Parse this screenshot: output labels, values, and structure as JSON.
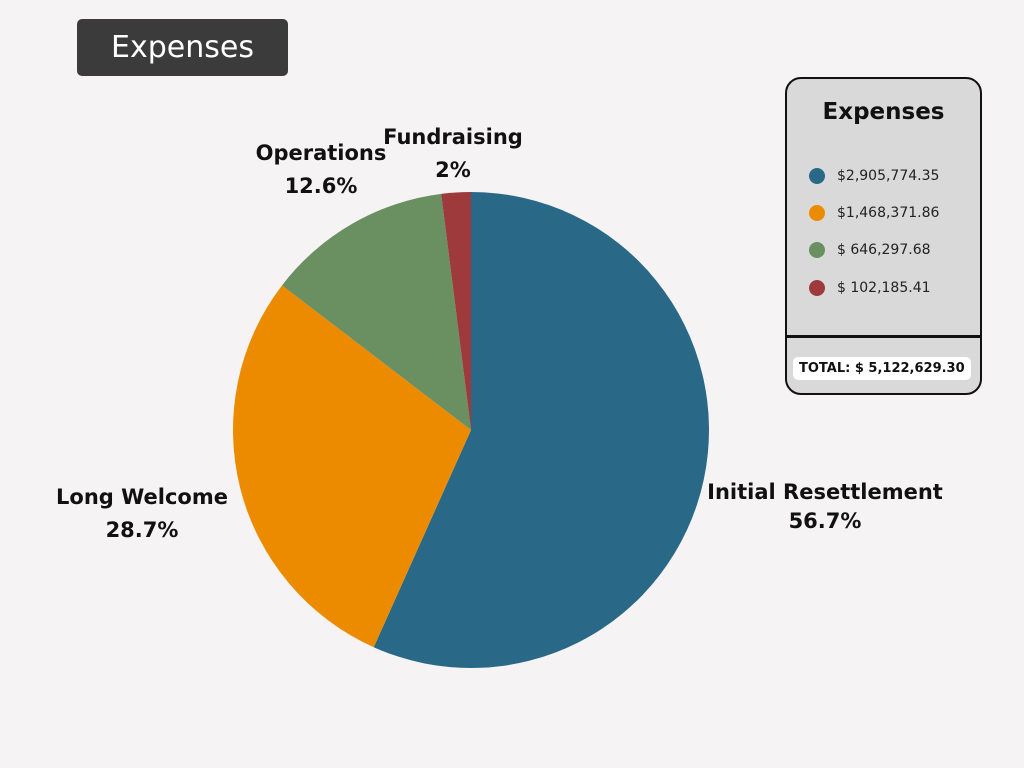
{
  "page": {
    "title": "Expenses"
  },
  "legend": {
    "title": "Expenses",
    "items": [
      {
        "value": "$2,905,774.35",
        "color": "#2a6887"
      },
      {
        "value": "$1,468,371.86",
        "color": "#ec8b00"
      },
      {
        "value": "$ 646,297.68",
        "color": "#6a9062"
      },
      {
        "value": "$ 102,185.41",
        "color": "#9e3a3b"
      }
    ],
    "total": "TOTAL: $ 5,122,629.30"
  },
  "chart_data": {
    "type": "pie",
    "title": "Expenses",
    "start": "12 o'clock",
    "direction": "clockwise",
    "slices": [
      {
        "label": "Initial Resettlement",
        "percent_label": "56.7%",
        "value": 56.7,
        "amount": 2905774.35,
        "color": "#2a6887"
      },
      {
        "label": "Long Welcome",
        "percent_label": "28.7%",
        "value": 28.7,
        "amount": 1468371.86,
        "color": "#ec8b00"
      },
      {
        "label": "Operations",
        "percent_label": "12.6%",
        "value": 12.6,
        "amount": 646297.68,
        "color": "#6a9062"
      },
      {
        "label": "Fundraising",
        "percent_label": "2%",
        "value": 2.0,
        "amount": 102185.41,
        "color": "#9e3a3b"
      }
    ]
  }
}
